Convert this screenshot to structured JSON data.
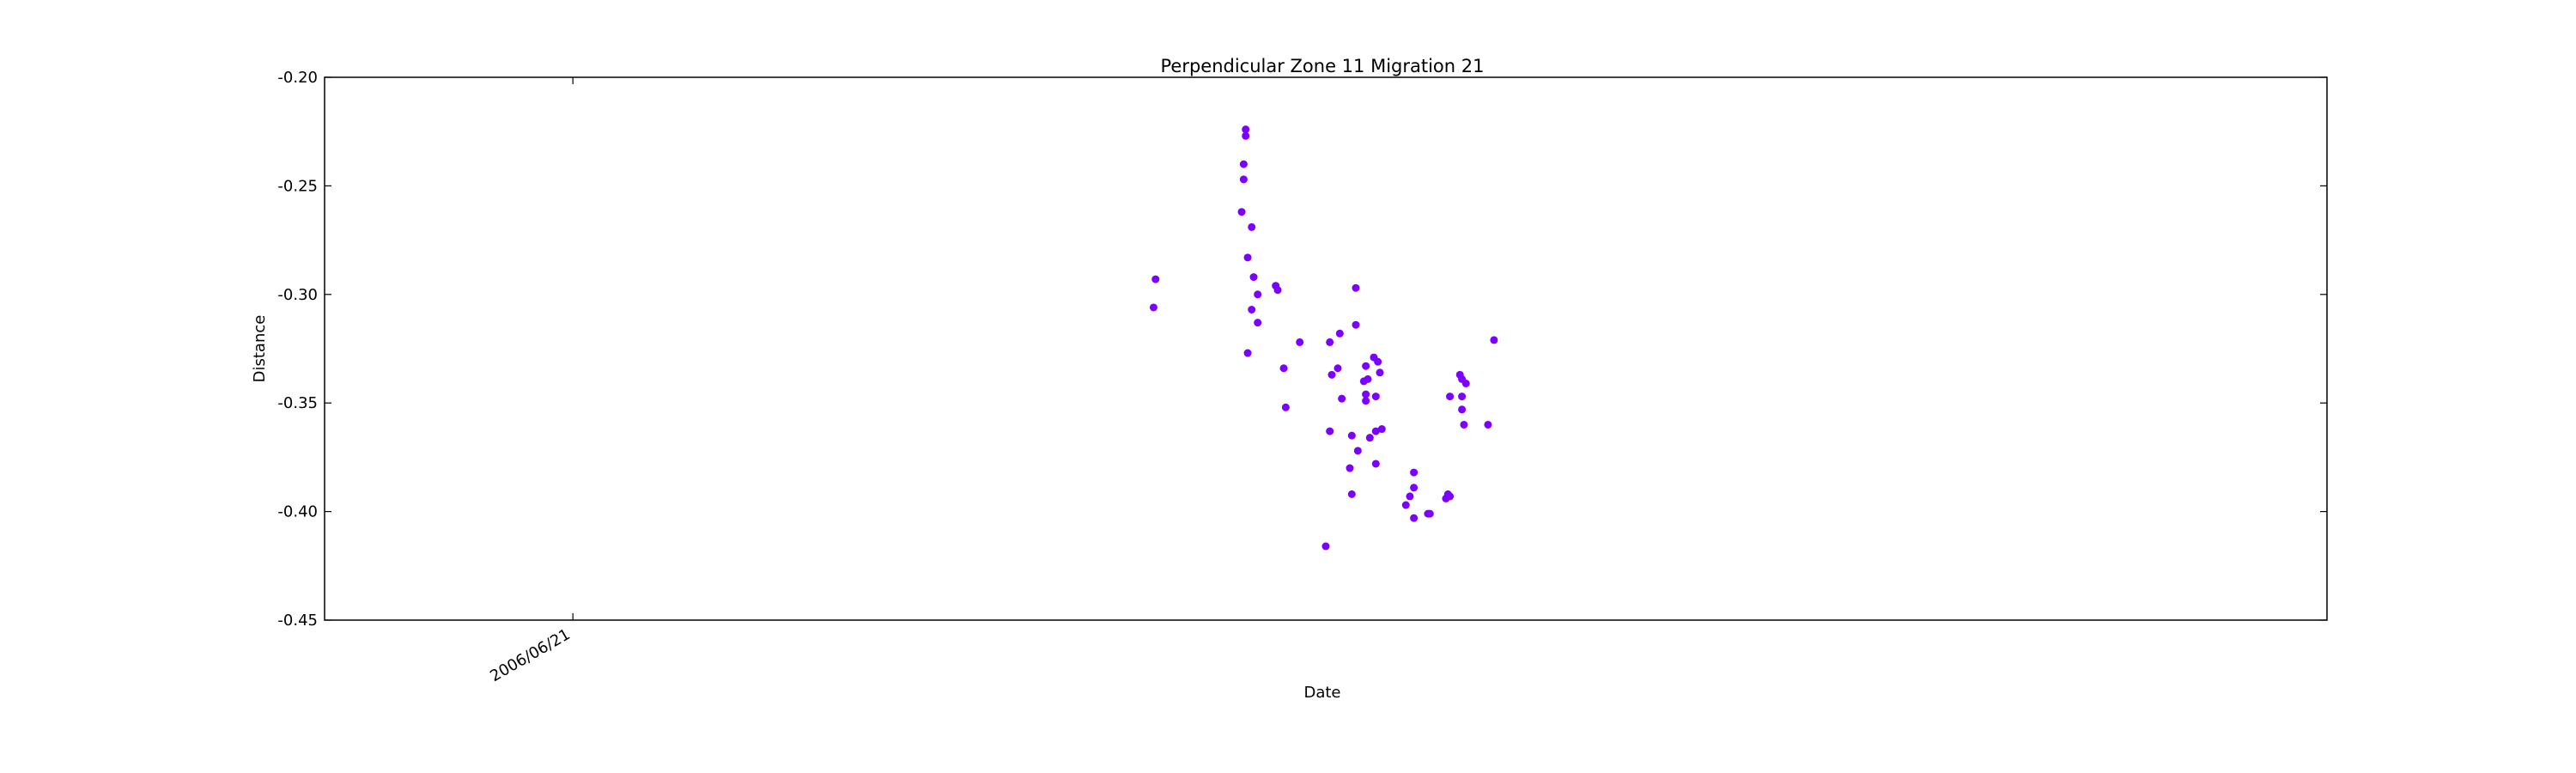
{
  "chart_data": {
    "type": "scatter",
    "title": "Perpendicular Zone 11 Migration 21",
    "xlabel": "Date",
    "ylabel": "Distance",
    "ylim": [
      -0.45,
      -0.2
    ],
    "yticks": [
      "-0.20",
      "-0.25",
      "-0.30",
      "-0.35",
      "-0.40",
      "-0.45"
    ],
    "xlim": [
      0,
      1000
    ],
    "xticks": [
      {
        "x": 124,
        "label": "2006/06/21"
      }
    ],
    "grid": false,
    "color": "#7b00ff",
    "points": [
      {
        "x": 414,
        "y": -0.306
      },
      {
        "x": 415,
        "y": -0.293
      },
      {
        "x": 460,
        "y": -0.224
      },
      {
        "x": 460,
        "y": -0.227
      },
      {
        "x": 459,
        "y": -0.24
      },
      {
        "x": 459,
        "y": -0.247
      },
      {
        "x": 458,
        "y": -0.262
      },
      {
        "x": 463,
        "y": -0.269
      },
      {
        "x": 461,
        "y": -0.283
      },
      {
        "x": 464,
        "y": -0.292
      },
      {
        "x": 466,
        "y": -0.3
      },
      {
        "x": 463,
        "y": -0.307
      },
      {
        "x": 466,
        "y": -0.313
      },
      {
        "x": 461,
        "y": -0.327
      },
      {
        "x": 475,
        "y": -0.296
      },
      {
        "x": 476,
        "y": -0.298
      },
      {
        "x": 479,
        "y": -0.334
      },
      {
        "x": 480,
        "y": -0.352
      },
      {
        "x": 487,
        "y": -0.322
      },
      {
        "x": 500,
        "y": -0.416
      },
      {
        "x": 502,
        "y": -0.322
      },
      {
        "x": 503,
        "y": -0.337
      },
      {
        "x": 502,
        "y": -0.363
      },
      {
        "x": 506,
        "y": -0.334
      },
      {
        "x": 507,
        "y": -0.318
      },
      {
        "x": 508,
        "y": -0.348
      },
      {
        "x": 512,
        "y": -0.38
      },
      {
        "x": 513,
        "y": -0.365
      },
      {
        "x": 513,
        "y": -0.392
      },
      {
        "x": 515,
        "y": -0.297
      },
      {
        "x": 515,
        "y": -0.314
      },
      {
        "x": 516,
        "y": -0.372
      },
      {
        "x": 519,
        "y": -0.34
      },
      {
        "x": 520,
        "y": -0.333
      },
      {
        "x": 520,
        "y": -0.346
      },
      {
        "x": 520,
        "y": -0.349
      },
      {
        "x": 521,
        "y": -0.339
      },
      {
        "x": 522,
        "y": -0.366
      },
      {
        "x": 524,
        "y": -0.329
      },
      {
        "x": 525,
        "y": -0.347
      },
      {
        "x": 525,
        "y": -0.378
      },
      {
        "x": 525,
        "y": -0.363
      },
      {
        "x": 526,
        "y": -0.331
      },
      {
        "x": 527,
        "y": -0.336
      },
      {
        "x": 528,
        "y": -0.362
      },
      {
        "x": 540,
        "y": -0.397
      },
      {
        "x": 542,
        "y": -0.393
      },
      {
        "x": 544,
        "y": -0.382
      },
      {
        "x": 544,
        "y": -0.389
      },
      {
        "x": 544,
        "y": -0.403
      },
      {
        "x": 551,
        "y": -0.401
      },
      {
        "x": 552,
        "y": -0.401
      },
      {
        "x": 560,
        "y": -0.394
      },
      {
        "x": 561,
        "y": -0.392
      },
      {
        "x": 562,
        "y": -0.393
      },
      {
        "x": 562,
        "y": -0.347
      },
      {
        "x": 567,
        "y": -0.337
      },
      {
        "x": 568,
        "y": -0.339
      },
      {
        "x": 568,
        "y": -0.347
      },
      {
        "x": 568,
        "y": -0.353
      },
      {
        "x": 570,
        "y": -0.341
      },
      {
        "x": 569,
        "y": -0.36
      },
      {
        "x": 581,
        "y": -0.36
      },
      {
        "x": 584,
        "y": -0.321
      }
    ]
  }
}
